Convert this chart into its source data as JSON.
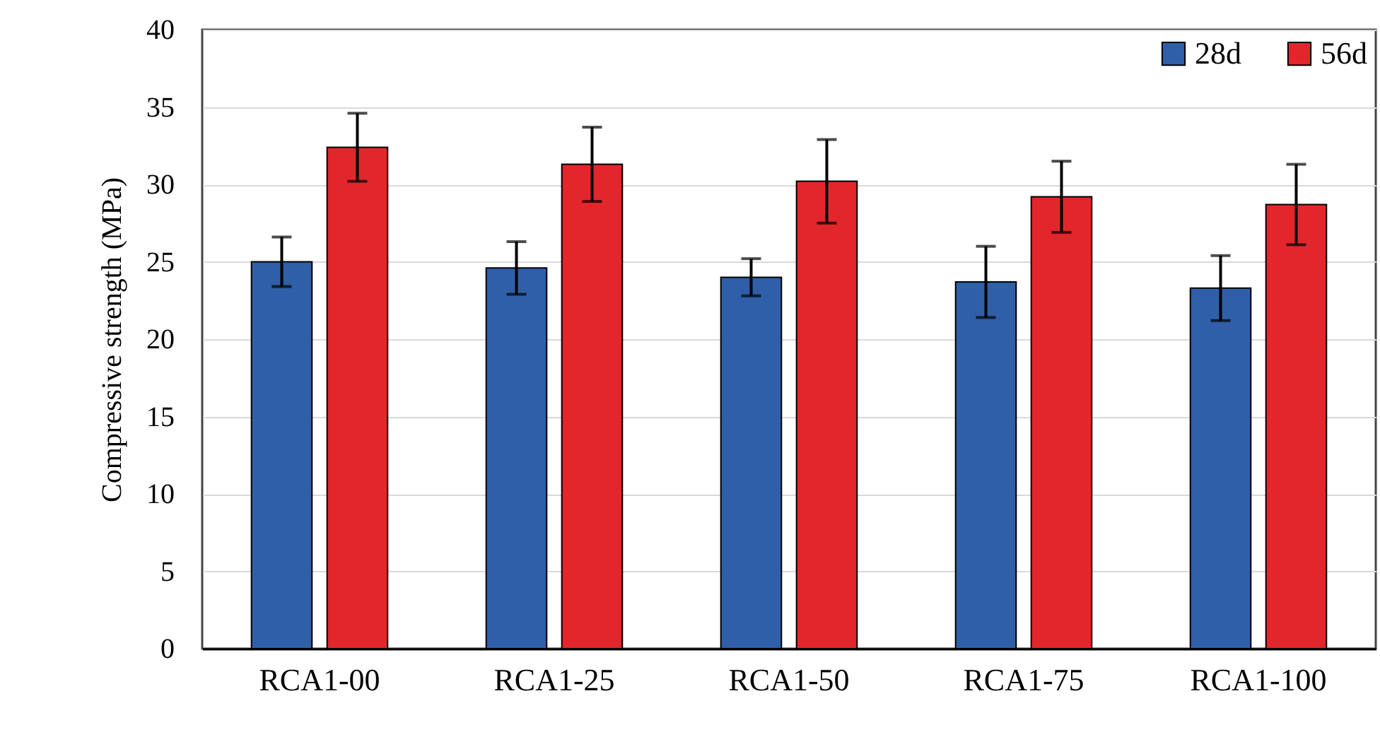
{
  "chart_data": {
    "type": "bar",
    "ylabel": "Compressive strength (MPa)",
    "categories": [
      "RCA1-00",
      "RCA1-25",
      "RCA1-50",
      "RCA1-75",
      "RCA1-100"
    ],
    "series": [
      {
        "name": "28d",
        "color": "#2f5fa8",
        "values": [
          25.0,
          24.6,
          24.0,
          23.7,
          23.3
        ],
        "errors": [
          1.6,
          1.7,
          1.2,
          2.3,
          2.1
        ]
      },
      {
        "name": "56d",
        "color": "#e3262b",
        "values": [
          32.4,
          31.3,
          30.2,
          29.2,
          28.7
        ],
        "errors": [
          2.2,
          2.4,
          2.7,
          2.3,
          2.6
        ]
      }
    ],
    "ylim": [
      0,
      40
    ],
    "yticks": [
      0,
      5,
      10,
      15,
      20,
      25,
      30,
      35,
      40
    ],
    "grid": "y",
    "legend": "top right"
  }
}
